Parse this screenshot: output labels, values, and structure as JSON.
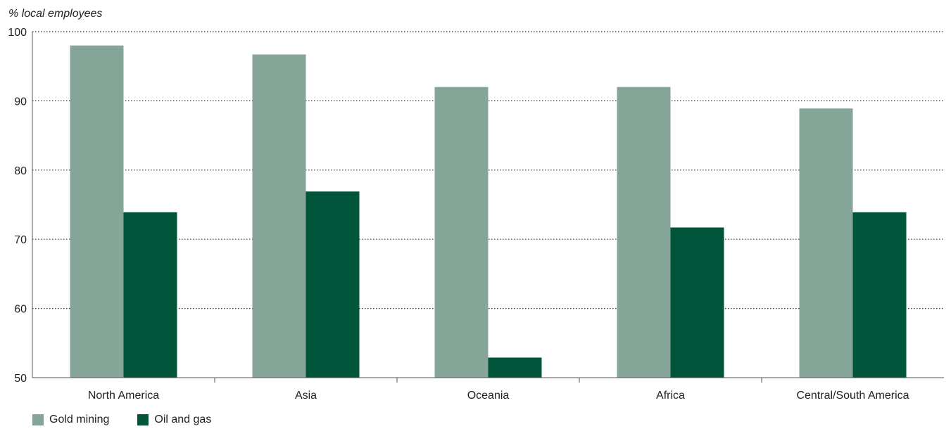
{
  "chart_data": {
    "type": "bar",
    "ylabel": "% local employees",
    "xlabel": "",
    "categories": [
      "North America",
      "Asia",
      "Oceania",
      "Africa",
      "Central/South America"
    ],
    "series": [
      {
        "name": "Gold mining",
        "color": "#85a599",
        "values": [
          98,
          96.7,
          92,
          92,
          88.9
        ]
      },
      {
        "name": "Oil and gas",
        "color": "#00553a",
        "values": [
          73.9,
          76.9,
          52.9,
          71.7,
          73.9
        ]
      }
    ],
    "ylim": [
      50,
      100
    ],
    "yticks": [
      50,
      60,
      70,
      80,
      90,
      100
    ],
    "grid": true,
    "legend_position": "bottom-left"
  }
}
